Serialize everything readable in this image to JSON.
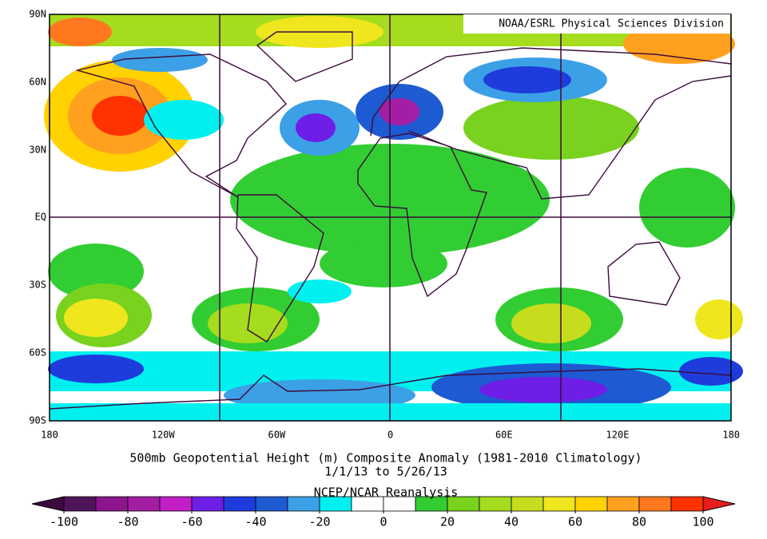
{
  "map": {
    "source": "NOAA/ESRL Physical Sciences Division",
    "lat_labels": [
      "90N",
      "60N",
      "30N",
      "EQ",
      "30S",
      "60S",
      "90S"
    ],
    "lon_labels": [
      "180",
      "120W",
      "60W",
      "0",
      "60E",
      "120E",
      "180"
    ],
    "title": "500mb Geopotential Height (m) Composite Anomaly (1981-2010 Climatology)",
    "subtitle": "1/1/13  to 5/26/13",
    "credit": "NCEP/NCAR Reanalysis"
  },
  "colorbar": {
    "range": [
      -100,
      100
    ],
    "ticks": [
      -100,
      -80,
      -60,
      -40,
      -20,
      0,
      20,
      40,
      60,
      80,
      100
    ],
    "low_color": "#3c0a3c",
    "high_color": "#e61e1e",
    "colors": [
      "#50145a",
      "#8c148c",
      "#a41ea4",
      "#c31ec8",
      "#6e1ee6",
      "#1e3cdc",
      "#1e5ad2",
      "#3ca0e6",
      "#00f0f0",
      "#ffffff",
      "#ffffff",
      "#32cd32",
      "#78d21e",
      "#a5dc1e",
      "#c8dc1e",
      "#f0e61e",
      "#ffd200",
      "#ffa01e",
      "#ff781e",
      "#ff3200"
    ]
  }
}
